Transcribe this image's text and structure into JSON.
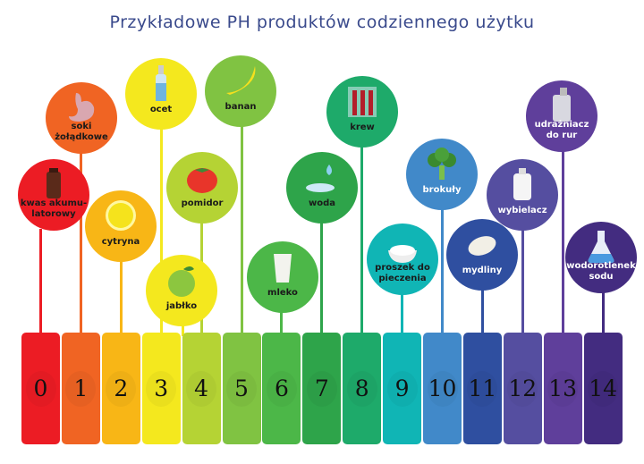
{
  "title": "Przykładowe PH produktów codziennego użytku",
  "scale": [
    {
      "value": "0",
      "color": "#ec1c24"
    },
    {
      "value": "1",
      "color": "#f06423"
    },
    {
      "value": "2",
      "color": "#f8b616"
    },
    {
      "value": "3",
      "color": "#f4e81e"
    },
    {
      "value": "4",
      "color": "#b5d334"
    },
    {
      "value": "5",
      "color": "#80c342"
    },
    {
      "value": "6",
      "color": "#4cb748"
    },
    {
      "value": "7",
      "color": "#2ea44a"
    },
    {
      "value": "8",
      "color": "#1eaa6a"
    },
    {
      "value": "9",
      "color": "#10b5b5"
    },
    {
      "value": "10",
      "color": "#4189c9"
    },
    {
      "value": "11",
      "color": "#2f4fa0"
    },
    {
      "value": "12",
      "color": "#554ea0"
    },
    {
      "value": "13",
      "color": "#5f3f9b"
    },
    {
      "value": "14",
      "color": "#432c80"
    }
  ],
  "items": [
    {
      "label": [
        "kwas akumu-",
        "latorowy"
      ],
      "ph": 0,
      "icon": "bottle-icon"
    },
    {
      "label": [
        "soki",
        "żołądkowe"
      ],
      "ph": 1,
      "icon": "stomach-icon"
    },
    {
      "label": [
        "cytryna"
      ],
      "ph": 2,
      "icon": "lemon-icon"
    },
    {
      "label": [
        "ocet"
      ],
      "ph": 3,
      "icon": "vinegar-bottle-icon"
    },
    {
      "label": [
        "jabłko"
      ],
      "ph": 3,
      "icon": "apple-icon"
    },
    {
      "label": [
        "pomidor"
      ],
      "ph": 4,
      "icon": "tomato-icon"
    },
    {
      "label": [
        "banan"
      ],
      "ph": 5,
      "icon": "banana-icon"
    },
    {
      "label": [
        "mleko"
      ],
      "ph": 6,
      "icon": "milk-glass-icon"
    },
    {
      "label": [
        "woda"
      ],
      "ph": 7,
      "icon": "water-drop-icon"
    },
    {
      "label": [
        "krew"
      ],
      "ph": 8,
      "icon": "test-tubes-icon"
    },
    {
      "label": [
        "proszek do",
        "pieczenia"
      ],
      "ph": 9,
      "icon": "powder-bowl-icon"
    },
    {
      "label": [
        "brokuły"
      ],
      "ph": 10,
      "icon": "broccoli-icon"
    },
    {
      "label": [
        "mydliny"
      ],
      "ph": 11,
      "icon": "soap-icon"
    },
    {
      "label": [
        "wybielacz"
      ],
      "ph": 12,
      "icon": "bleach-jug-icon"
    },
    {
      "label": [
        "udrażniacz",
        "do rur"
      ],
      "ph": 13,
      "icon": "drain-cleaner-icon"
    },
    {
      "label": [
        "wodorotlenek",
        "sodu"
      ],
      "ph": 14,
      "icon": "flask-icon"
    }
  ]
}
